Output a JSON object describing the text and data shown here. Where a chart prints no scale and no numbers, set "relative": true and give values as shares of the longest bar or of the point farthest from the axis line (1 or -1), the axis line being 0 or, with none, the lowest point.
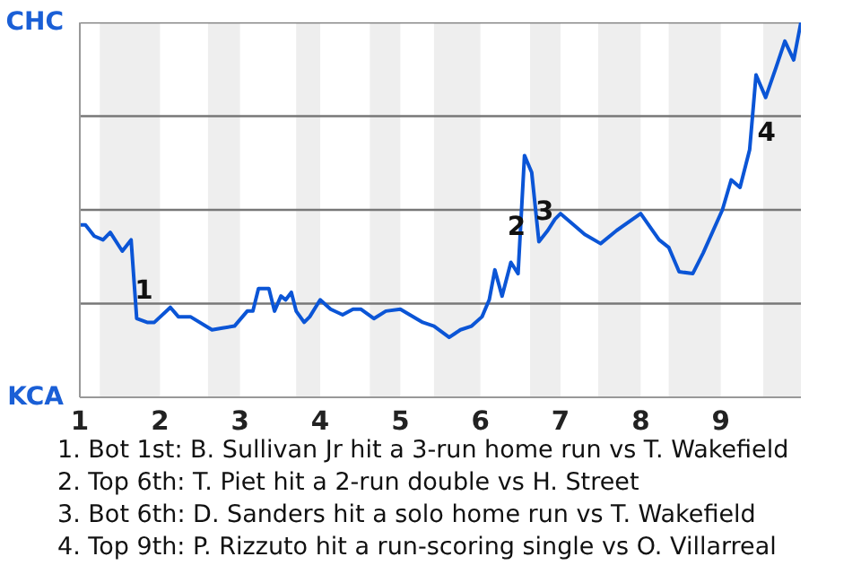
{
  "chart_data": {
    "type": "line",
    "relative": true,
    "x": [
      1.0,
      1.07,
      1.18,
      1.29,
      1.38,
      1.53,
      1.64,
      1.71,
      1.84,
      1.93,
      2.13,
      2.23,
      2.38,
      2.65,
      2.78,
      2.93,
      3.09,
      3.16,
      3.23,
      3.36,
      3.43,
      3.51,
      3.57,
      3.64,
      3.7,
      3.8,
      3.87,
      4.0,
      4.13,
      4.28,
      4.41,
      4.51,
      4.67,
      4.82,
      5.0,
      5.28,
      5.42,
      5.61,
      5.75,
      5.89,
      6.02,
      6.11,
      6.18,
      6.27,
      6.38,
      6.47,
      6.55,
      6.64,
      6.73,
      6.84,
      6.93,
      7.0,
      7.3,
      7.5,
      7.7,
      8.0,
      8.23,
      8.35,
      8.48,
      8.65,
      8.78,
      9.02,
      9.13,
      9.24,
      9.36,
      9.44,
      9.56,
      9.69,
      9.8,
      9.91,
      10.0
    ],
    "series": [
      {
        "color": "#0b55d6",
        "values": [
          0.46,
          0.46,
          0.43,
          0.42,
          0.44,
          0.39,
          0.42,
          0.21,
          0.2,
          0.2,
          0.24,
          0.215,
          0.215,
          0.18,
          0.185,
          0.19,
          0.23,
          0.23,
          0.29,
          0.29,
          0.23,
          0.27,
          0.26,
          0.28,
          0.23,
          0.2,
          0.215,
          0.26,
          0.235,
          0.22,
          0.235,
          0.235,
          0.21,
          0.23,
          0.235,
          0.2,
          0.19,
          0.16,
          0.18,
          0.19,
          0.215,
          0.26,
          0.34,
          0.27,
          0.36,
          0.33,
          0.645,
          0.6,
          0.415,
          0.445,
          0.475,
          0.49,
          0.435,
          0.41,
          0.445,
          0.49,
          0.42,
          0.4,
          0.335,
          0.33,
          0.385,
          0.5,
          0.58,
          0.56,
          0.66,
          0.86,
          0.8,
          0.88,
          0.95,
          0.9,
          1.0
        ]
      }
    ],
    "xlim": [
      1,
      10
    ],
    "xticks": [
      1,
      2,
      3,
      4,
      5,
      6,
      7,
      8,
      9
    ],
    "marker": "none",
    "line_style": "solid",
    "ref_lines": [
      {
        "axis": "y",
        "value": 0.25,
        "color": "#777777"
      },
      {
        "axis": "y",
        "value": 0.5,
        "color": "#777777"
      },
      {
        "axis": "y",
        "value": 0.75,
        "color": "#777777"
      },
      {
        "axis": "y",
        "value": 1,
        "color": "#777777"
      }
    ],
    "bands": [
      {
        "axis": "x",
        "from": 1.25,
        "to": 2,
        "color": "#eeeeee"
      },
      {
        "axis": "x",
        "from": 2.6,
        "to": 3,
        "color": "#eeeeee"
      },
      {
        "axis": "x",
        "from": 3.7,
        "to": 4,
        "color": "#eeeeee"
      },
      {
        "axis": "x",
        "from": 4.62,
        "to": 5,
        "color": "#eeeeee"
      },
      {
        "axis": "x",
        "from": 5.42,
        "to": 6,
        "color": "#eeeeee"
      },
      {
        "axis": "x",
        "from": 6.62,
        "to": 7,
        "color": "#eeeeee"
      },
      {
        "axis": "x",
        "from": 7.47,
        "to": 8,
        "color": "#eeeeee"
      },
      {
        "axis": "x",
        "from": 8.35,
        "to": 9,
        "color": "#eeeeee"
      },
      {
        "axis": "x",
        "from": 9.53,
        "to": 10,
        "color": "#eeeeee"
      }
    ],
    "annotations": [
      {
        "text": "1",
        "x": 1.8,
        "y": 0.29
      },
      {
        "text": "2",
        "x": 6.45,
        "y": 0.46
      },
      {
        "text": "3",
        "x": 6.8,
        "y": 0.5
      },
      {
        "text": "4",
        "x": 9.57,
        "y": 0.71
      },
      "CHC",
      "KCA",
      "1. Bot 1st: B. Sullivan Jr hit a 3-run home run vs T. Wakefield",
      "2. Top 6th: T. Piet hit a 2-run double vs H. Street",
      "3. Bot 6th: D. Sanders hit a solo home run vs T. Wakefield",
      "4. Top 9th: P. Rizzuto hit a run-scoring single vs O. Villarreal"
    ]
  }
}
